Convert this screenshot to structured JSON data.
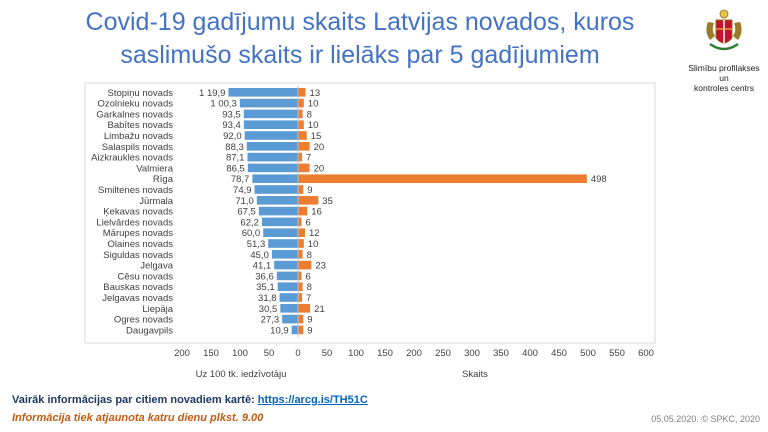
{
  "header": {
    "title_line1": "Covid-19 gadījumu skaits Latvijas novados, kuros",
    "title_line2": "saslimušo skaits ir lielāks par 5 gadījumiem"
  },
  "logo": {
    "line1": "Slimību profilakses un",
    "line2": "kontroles centrs"
  },
  "chart_data": {
    "type": "bar",
    "orientation": "horizontal-butterfly",
    "categories": [
      "Stopiņu novads",
      "Ozolnieku novads",
      "Garkalnes novads",
      "Babītes novads",
      "Limbažu novads",
      "Salaspils novads",
      "Aizkraukles novads",
      "Valmiera",
      "Rīga",
      "Smiltenes novads",
      "Jūrmala",
      "Ķekavas novads",
      "Lielvārdes novads",
      "Mārupes novads",
      "Olaines novads",
      "Siguldas novads",
      "Jelgava",
      "Cēsu novads",
      "Bauskas novads",
      "Jelgavas novads",
      "Liepāja",
      "Ogres novads",
      "Daugavpils"
    ],
    "series": [
      {
        "name": "Uz 100 tk. iedzīvotāju",
        "color": "#5b9bd5",
        "values": [
          119.9,
          100.3,
          93.5,
          93.4,
          92.0,
          88.3,
          87.1,
          86.5,
          78.7,
          74.9,
          71.0,
          67.5,
          62.2,
          60.0,
          51.3,
          45.0,
          41.1,
          36.6,
          35.1,
          31.8,
          30.5,
          27.3,
          10.9
        ],
        "labels": [
          "1 19,9",
          "1 00,3",
          "93,5",
          "93,4",
          "92,0",
          "88,3",
          "87,1",
          "86,5",
          "78,7",
          "74,9",
          "71,0",
          "67,5",
          "62,2",
          "60,0",
          "51,3",
          "45,0",
          "41,1",
          "36,6",
          "35,1",
          "31,8",
          "30,5",
          "27,3",
          "10,9"
        ]
      },
      {
        "name": "Skaits",
        "color": "#ed7d31",
        "values": [
          13,
          10,
          8,
          10,
          15,
          20,
          7,
          20,
          498,
          9,
          35,
          16,
          6,
          12,
          10,
          8,
          23,
          6,
          8,
          7,
          21,
          9,
          9
        ],
        "labels": [
          "13",
          "10",
          "8",
          "10",
          "15",
          "20",
          "7",
          "20",
          "498",
          "9",
          "35",
          "16",
          "6",
          "12",
          "10",
          "8",
          "23",
          "6",
          "8",
          "7",
          "21",
          "9",
          "9"
        ]
      }
    ],
    "left_axis": {
      "range": [
        0,
        200
      ],
      "ticks": [
        "200",
        "150",
        "100",
        "50",
        "0"
      ],
      "label": "Uz 100 tk. iedzīvotāju"
    },
    "right_axis": {
      "range": [
        0,
        600
      ],
      "ticks": [
        "50",
        "100",
        "150",
        "200",
        "250",
        "300",
        "350",
        "400",
        "450",
        "500",
        "550",
        "600"
      ],
      "label": "Skaits"
    }
  },
  "footer": {
    "more_info_text": "Vairāk informācijas par citiem novadiem kartē: ",
    "more_info_link": "https://arcg.is/TH51C",
    "update_note": "Informācija tiek atjaunota katru dienu plkst. 9.00",
    "date_copyright": "05.05.2020. © SPKC, 2020"
  }
}
